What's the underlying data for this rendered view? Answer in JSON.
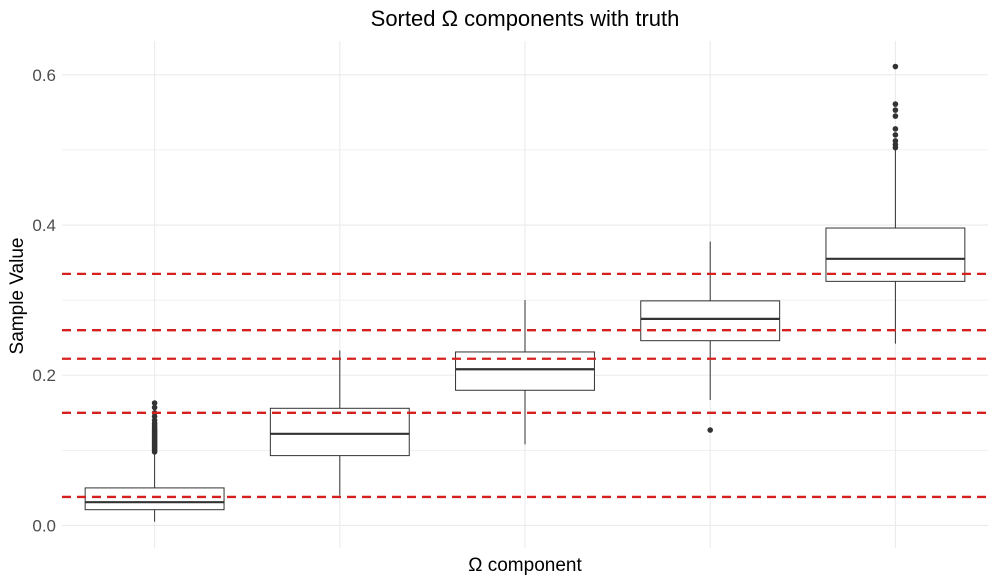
{
  "chart_data": {
    "type": "box",
    "title": "Sorted Ω components with truth",
    "xlabel": "Ω component",
    "ylabel": "Sample Value",
    "ylim": [
      -0.03,
      0.645
    ],
    "yticks": [
      0.0,
      0.2,
      0.4,
      0.6
    ],
    "ytick_labels": [
      "0.0",
      "0.2",
      "0.4",
      "0.6"
    ],
    "grid": true,
    "x_tick_labels_shown": false,
    "boxes": [
      {
        "q1": 0.021,
        "median": 0.031,
        "q3": 0.05,
        "whisker_low": 0.005,
        "whisker_high": 0.095,
        "outliers": [
          0.098,
          0.1,
          0.102,
          0.104,
          0.106,
          0.108,
          0.11,
          0.112,
          0.114,
          0.116,
          0.118,
          0.12,
          0.122,
          0.124,
          0.126,
          0.128,
          0.13,
          0.133,
          0.136,
          0.14,
          0.145,
          0.15,
          0.157,
          0.163
        ]
      },
      {
        "q1": 0.093,
        "median": 0.122,
        "q3": 0.156,
        "whisker_low": 0.04,
        "whisker_high": 0.233,
        "outliers": []
      },
      {
        "q1": 0.18,
        "median": 0.208,
        "q3": 0.231,
        "whisker_low": 0.108,
        "whisker_high": 0.3,
        "outliers": []
      },
      {
        "q1": 0.246,
        "median": 0.275,
        "q3": 0.299,
        "whisker_low": 0.167,
        "whisker_high": 0.378,
        "outliers": [
          0.127
        ]
      },
      {
        "q1": 0.325,
        "median": 0.355,
        "q3": 0.396,
        "whisker_low": 0.242,
        "whisker_high": 0.5,
        "outliers": [
          0.503,
          0.507,
          0.512,
          0.52,
          0.528,
          0.545,
          0.553,
          0.561,
          0.611
        ]
      }
    ],
    "truth_lines": [
      0.038,
      0.15,
      0.222,
      0.26,
      0.335
    ],
    "colors": {
      "box_stroke": "#333333",
      "truth_line": "#d62020",
      "grid": "#ebebeb",
      "outlier": "#333333"
    }
  }
}
